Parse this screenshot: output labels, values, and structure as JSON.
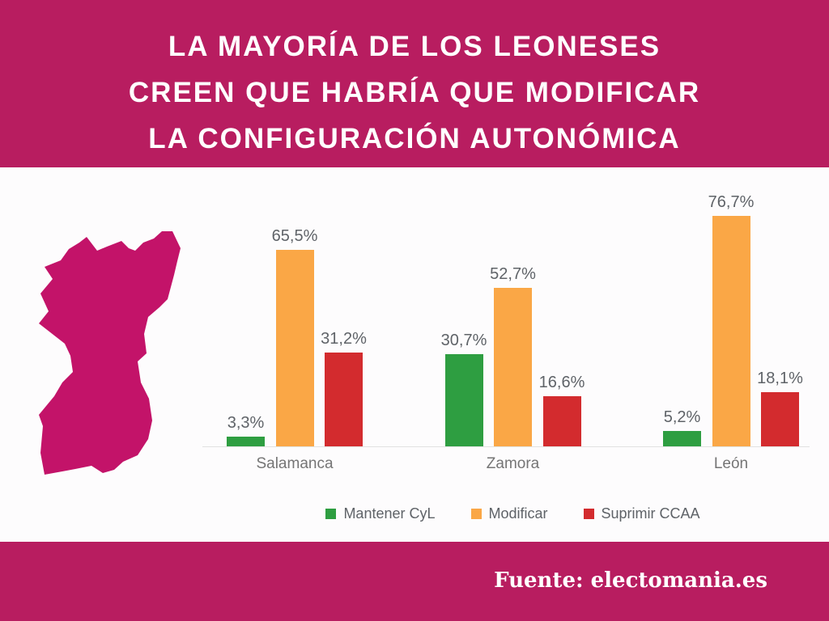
{
  "header": {
    "title_lines": [
      "LA MAYORÍA DE LOS LEONESES",
      "CREEN QUE HABRÍA QUE MODIFICAR",
      "LA CONFIGURACIÓN AUTONÓMICA"
    ],
    "background": "#b81d60",
    "text_color": "#ffffff"
  },
  "map": {
    "region": "Región Leonesa (León, Zamora, Salamanca)",
    "color": "#c31369"
  },
  "chart_data": {
    "type": "bar",
    "categories": [
      "Salamanca",
      "Zamora",
      "León"
    ],
    "series": [
      {
        "name": "Mantener CyL",
        "color": "#2e9e41",
        "values": [
          3.3,
          30.7,
          5.2
        ],
        "labels": [
          "3,3%",
          "30,7%",
          "5,2%"
        ]
      },
      {
        "name": "Modificar",
        "color": "#faa746",
        "values": [
          65.5,
          52.7,
          76.7
        ],
        "labels": [
          "65,5%",
          "52,7%",
          "76,7%"
        ]
      },
      {
        "name": "Suprimir CCAA",
        "color": "#d32b2e",
        "values": [
          31.2,
          16.6,
          18.1
        ],
        "labels": [
          "31,2%",
          "16,6%",
          "18,1%"
        ]
      }
    ],
    "title": "",
    "xlabel": "",
    "ylabel": "",
    "ylim": [
      0,
      93
    ],
    "grid": false,
    "legend_position": "bottom",
    "value_label_format": "percent-comma-decimal"
  },
  "footer": {
    "source_label": "Fuente: electomania.es"
  }
}
